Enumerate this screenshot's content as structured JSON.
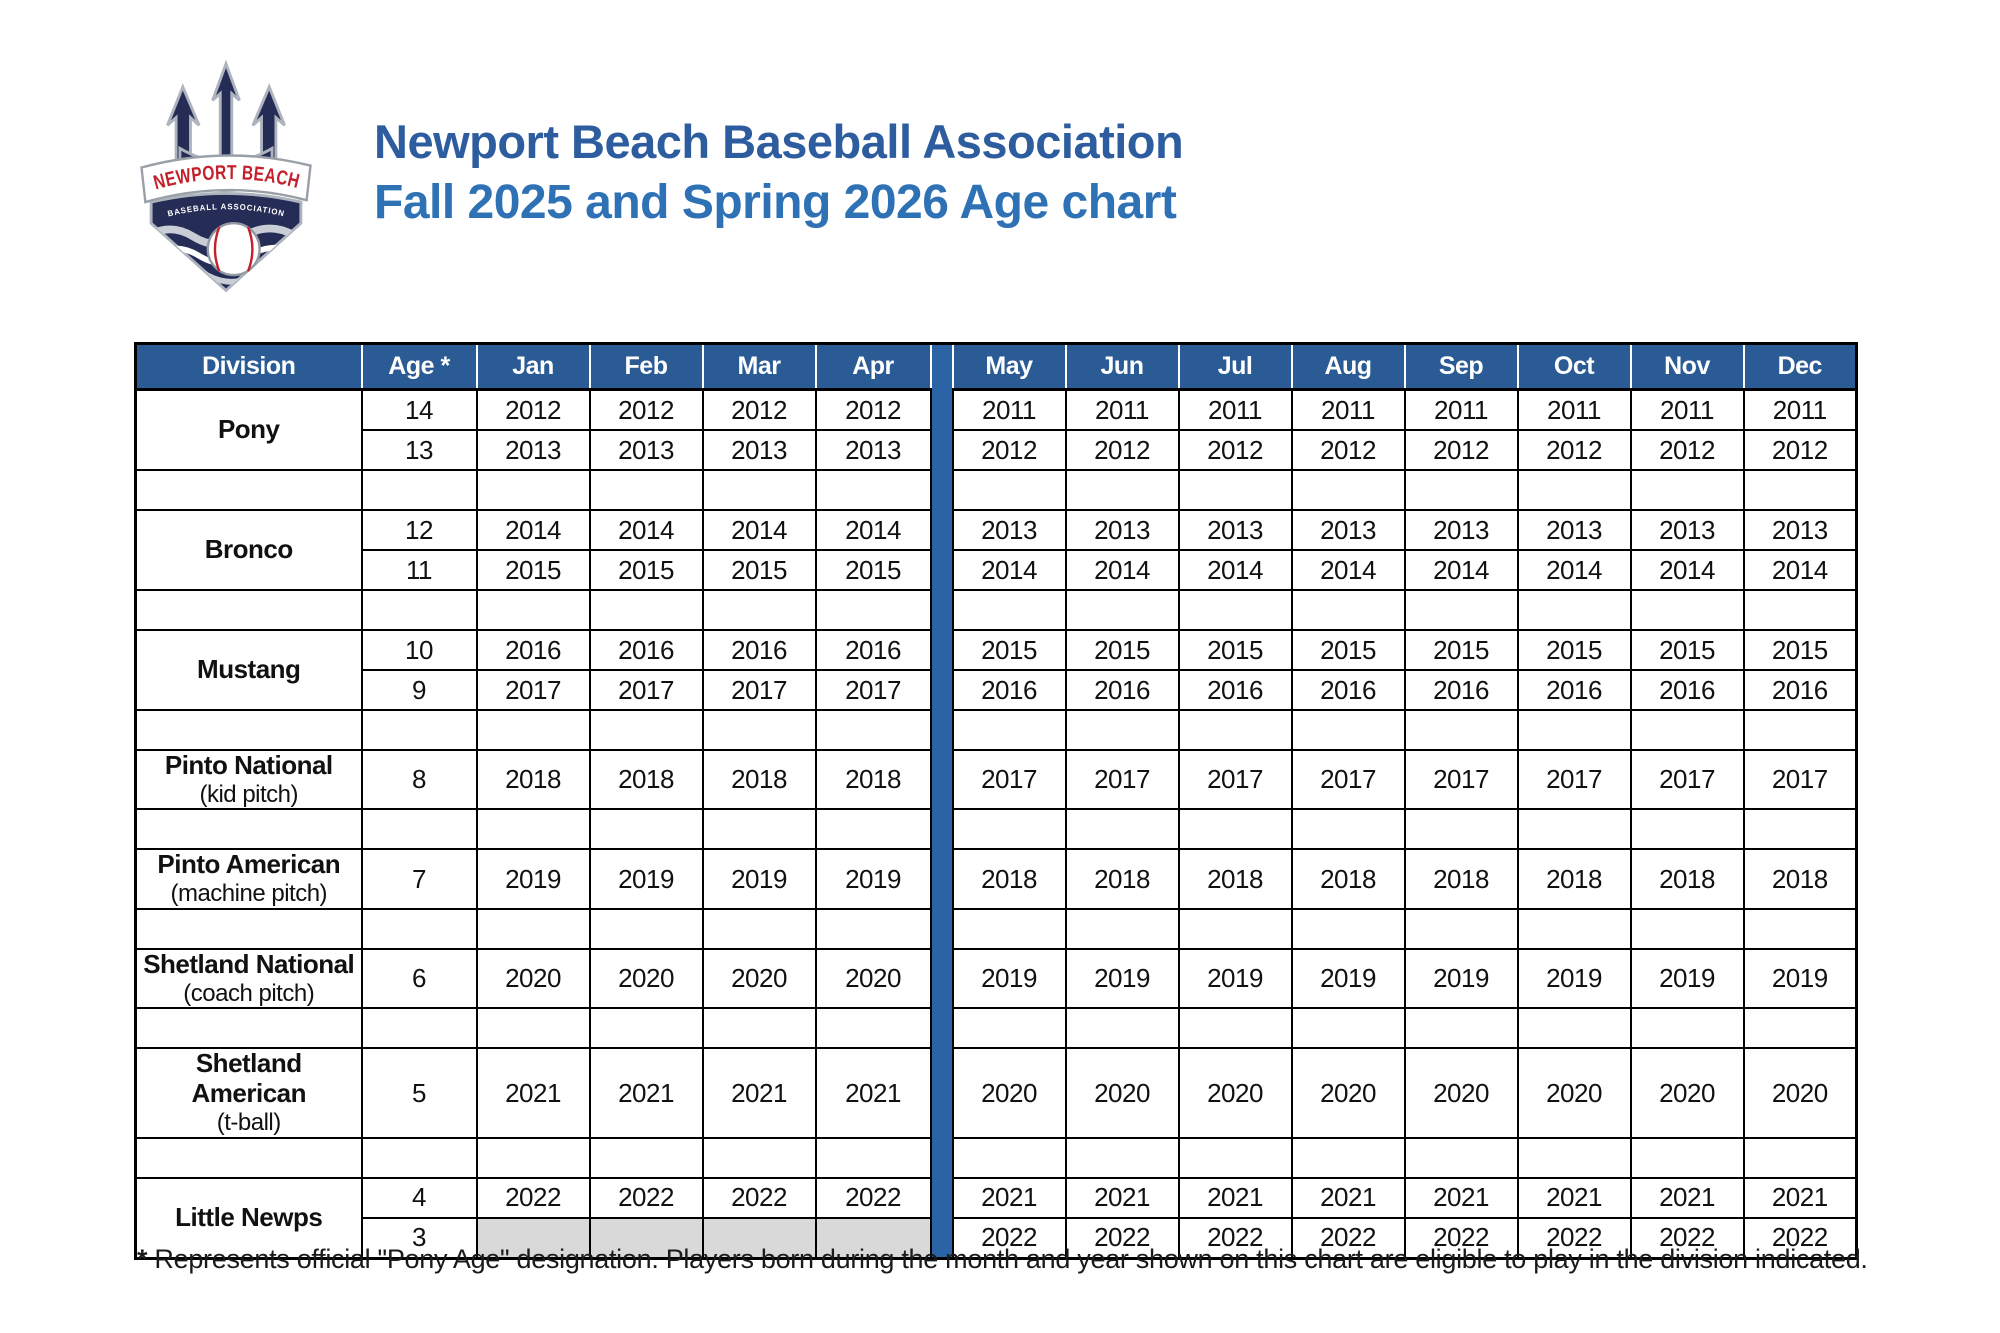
{
  "header": {
    "title": "Newport Beach Baseball Association",
    "subtitle": "Fall 2025 and Spring 2026 Age chart"
  },
  "logo": {
    "banner_text": "NEWPORT BEACH",
    "sub_text": "BASEBALL ASSOCIATION"
  },
  "footnote": {
    "star": "*",
    "text": " Represents official \"Pony Age\" designation.  Players born during the month and year shown on this chart are eligible to play in the division indicated."
  },
  "colors": {
    "header_bg": "#2A5B94",
    "divider_bar": "#2B64A4",
    "spacer_gray": "#D9D9D9",
    "title_line1": "#2D5D9F",
    "title_line2": "#2E71B4",
    "logo_red": "#C3202C",
    "logo_navy": "#252C56"
  },
  "table": {
    "columns": [
      "Division",
      "Age *",
      "Jan",
      "Feb",
      "Mar",
      "Apr",
      "May",
      "Jun",
      "Jul",
      "Aug",
      "Sep",
      "Oct",
      "Nov",
      "Dec"
    ],
    "divisions": [
      {
        "name": "Pony",
        "sub": "",
        "rows": [
          {
            "age": "14",
            "months": [
              "2012",
              "2012",
              "2012",
              "2012",
              "2011",
              "2011",
              "2011",
              "2011",
              "2011",
              "2011",
              "2011",
              "2011"
            ]
          },
          {
            "age": "13",
            "months": [
              "2013",
              "2013",
              "2013",
              "2013",
              "2012",
              "2012",
              "2012",
              "2012",
              "2012",
              "2012",
              "2012",
              "2012"
            ]
          }
        ]
      },
      {
        "name": "Bronco",
        "sub": "",
        "rows": [
          {
            "age": "12",
            "months": [
              "2014",
              "2014",
              "2014",
              "2014",
              "2013",
              "2013",
              "2013",
              "2013",
              "2013",
              "2013",
              "2013",
              "2013"
            ]
          },
          {
            "age": "11",
            "months": [
              "2015",
              "2015",
              "2015",
              "2015",
              "2014",
              "2014",
              "2014",
              "2014",
              "2014",
              "2014",
              "2014",
              "2014"
            ]
          }
        ]
      },
      {
        "name": "Mustang",
        "sub": "",
        "rows": [
          {
            "age": "10",
            "months": [
              "2016",
              "2016",
              "2016",
              "2016",
              "2015",
              "2015",
              "2015",
              "2015",
              "2015",
              "2015",
              "2015",
              "2015"
            ]
          },
          {
            "age": "9",
            "months": [
              "2017",
              "2017",
              "2017",
              "2017",
              "2016",
              "2016",
              "2016",
              "2016",
              "2016",
              "2016",
              "2016",
              "2016"
            ]
          }
        ]
      },
      {
        "name": "Pinto National",
        "sub": "(kid pitch)",
        "rows": [
          {
            "age": "8",
            "months": [
              "2018",
              "2018",
              "2018",
              "2018",
              "2017",
              "2017",
              "2017",
              "2017",
              "2017",
              "2017",
              "2017",
              "2017"
            ]
          }
        ]
      },
      {
        "name": "Pinto American",
        "sub": "(machine pitch)",
        "rows": [
          {
            "age": "7",
            "months": [
              "2019",
              "2019",
              "2019",
              "2019",
              "2018",
              "2018",
              "2018",
              "2018",
              "2018",
              "2018",
              "2018",
              "2018"
            ]
          }
        ]
      },
      {
        "name": "Shetland National",
        "sub": "(coach pitch)",
        "rows": [
          {
            "age": "6",
            "months": [
              "2020",
              "2020",
              "2020",
              "2020",
              "2019",
              "2019",
              "2019",
              "2019",
              "2019",
              "2019",
              "2019",
              "2019"
            ]
          }
        ]
      },
      {
        "name": "Shetland American",
        "sub": "(t-ball)",
        "rows": [
          {
            "age": "5",
            "months": [
              "2021",
              "2021",
              "2021",
              "2021",
              "2020",
              "2020",
              "2020",
              "2020",
              "2020",
              "2020",
              "2020",
              "2020"
            ]
          }
        ]
      },
      {
        "name": "Little Newps",
        "sub": "",
        "rows": [
          {
            "age": "4",
            "months": [
              "2022",
              "2022",
              "2022",
              "2022",
              "2021",
              "2021",
              "2021",
              "2021",
              "2021",
              "2021",
              "2021",
              "2021"
            ]
          },
          {
            "age": "3",
            "months": [
              "",
              "",
              "",
              "",
              "2022",
              "2022",
              "2022",
              "2022",
              "2022",
              "2022",
              "2022",
              "2022"
            ]
          }
        ]
      }
    ]
  }
}
